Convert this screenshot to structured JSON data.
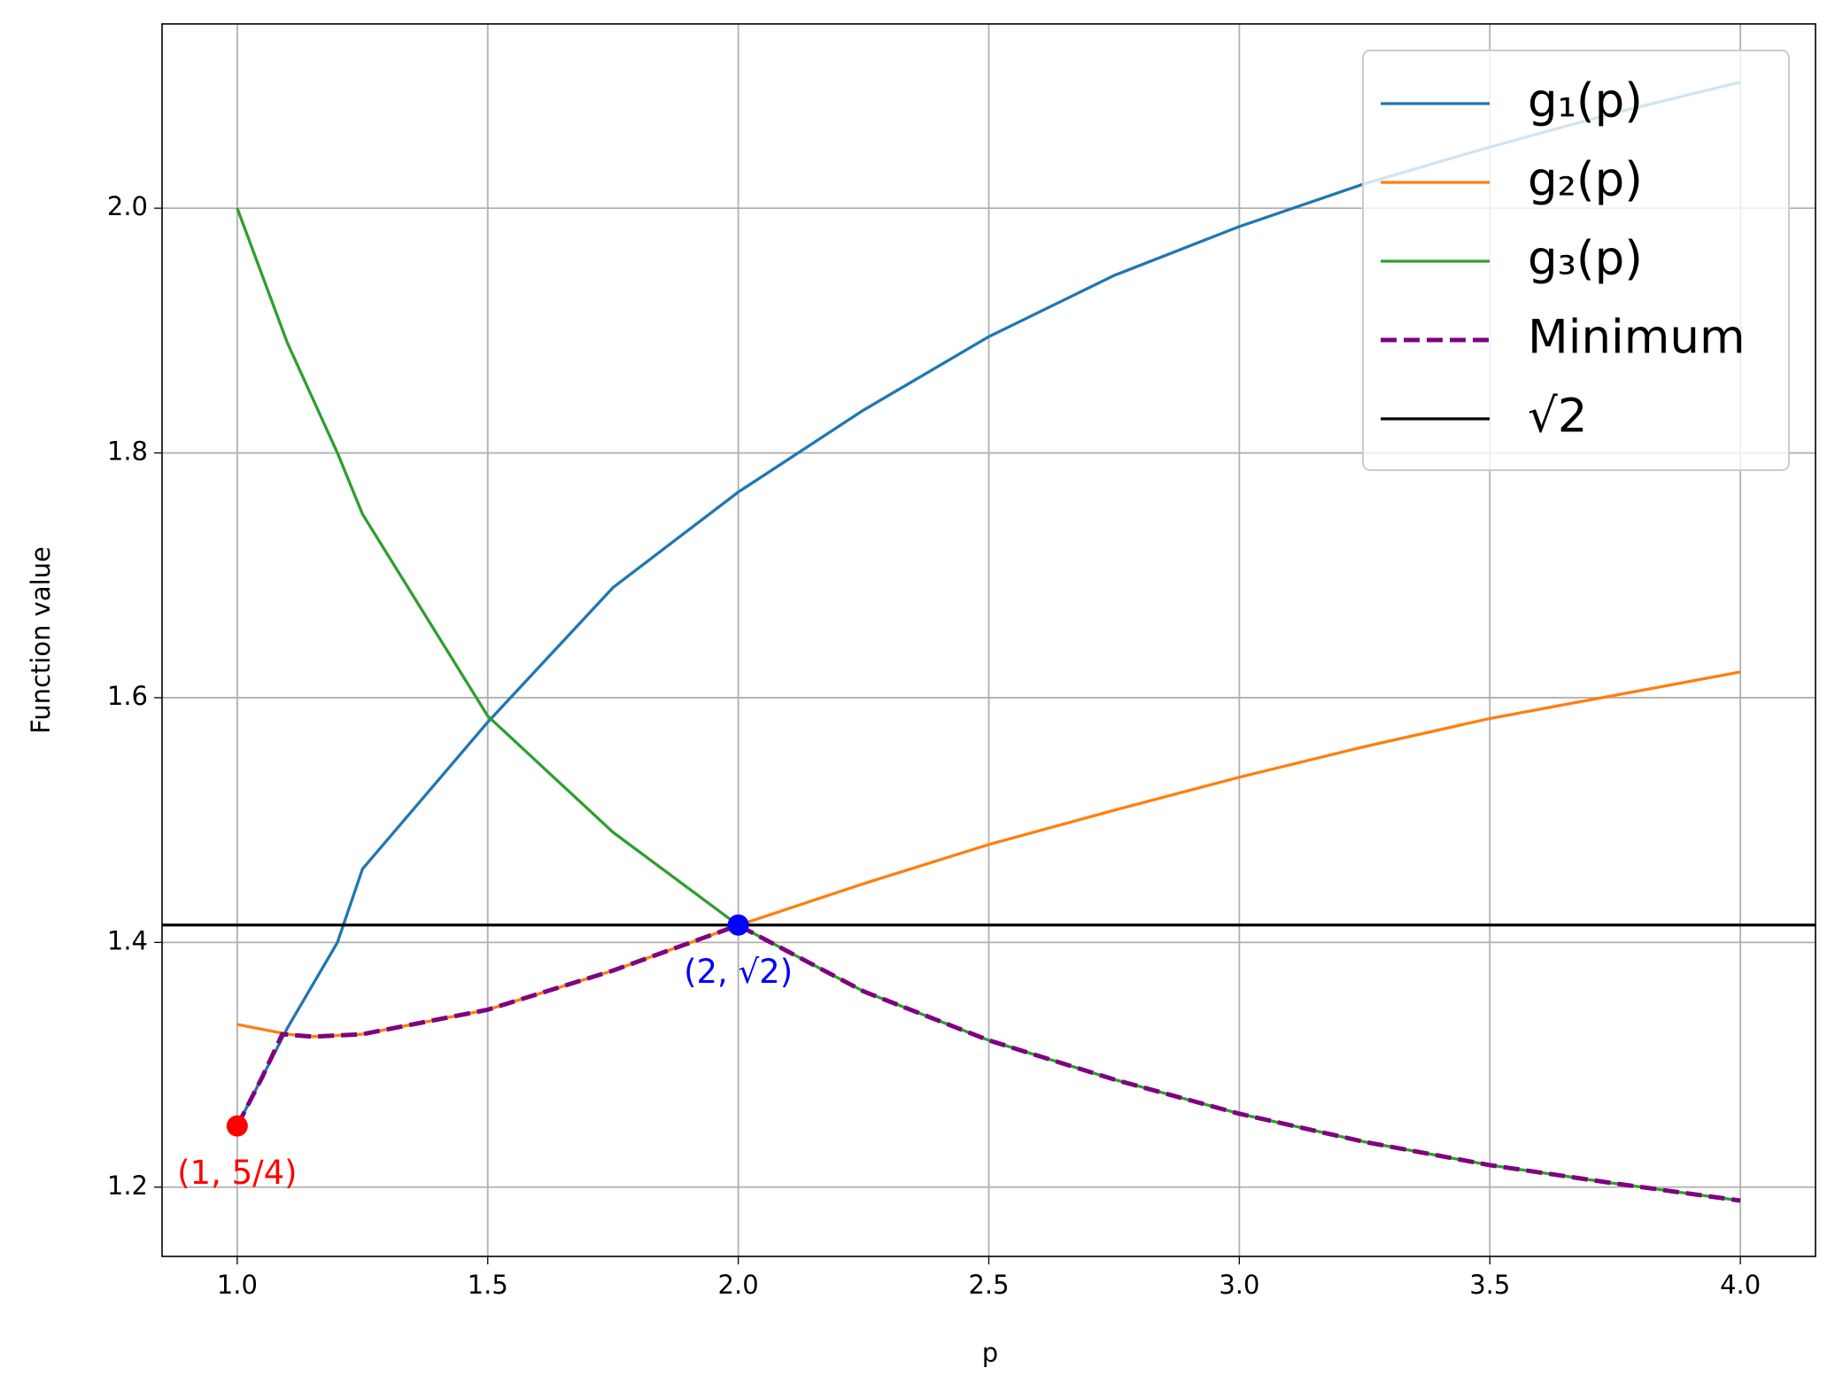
{
  "chart_data": {
    "type": "line",
    "xlabel": "p",
    "ylabel": "Function value",
    "xlim": [
      0.85,
      4.15
    ],
    "ylim": [
      1.1434,
      2.1506
    ],
    "xticks": [
      {
        "value": 1,
        "label": "1.0"
      },
      1.5,
      {
        "value": 2,
        "label": "2.0"
      },
      2.5,
      {
        "value": 3,
        "label": "3.0"
      },
      3.5,
      {
        "value": 4,
        "label": "4.0"
      }
    ],
    "yticks": [
      1.2,
      1.4,
      1.6,
      1.8,
      {
        "value": 2,
        "label": "2.0"
      }
    ],
    "grid": true,
    "legend": "upper right",
    "series": [
      {
        "name": "g₁(p)",
        "color": "#1f77b4",
        "style": "solid",
        "x": [
          1.0,
          1.05,
          1.1,
          1.2,
          1.25,
          1.5,
          1.75,
          2.0,
          2.25,
          2.5,
          2.75,
          3.0,
          3.25,
          3.5,
          3.75,
          4.0
        ],
        "values": [
          1.25,
          1.29,
          1.33,
          1.4,
          1.46,
          1.58,
          1.69,
          1.768,
          1.835,
          1.895,
          1.945,
          1.985,
          2.02,
          2.05,
          2.078,
          2.103
        ]
      },
      {
        "name": "g₂(p)",
        "color": "#ff7f0e",
        "style": "solid",
        "x": [
          1.0,
          1.1,
          1.15,
          1.25,
          1.5,
          1.75,
          2.0,
          2.25,
          2.5,
          2.75,
          3.0,
          3.25,
          3.5,
          3.75,
          4.0
        ],
        "values": [
          1.333,
          1.325,
          1.323,
          1.325,
          1.345,
          1.377,
          1.414,
          1.448,
          1.48,
          1.508,
          1.535,
          1.56,
          1.583,
          1.602,
          1.621
        ]
      },
      {
        "name": "g₃(p)",
        "color": "#2ca02c",
        "style": "solid",
        "x": [
          1.0,
          1.1,
          1.2,
          1.25,
          1.5,
          1.75,
          2.0,
          2.25,
          2.5,
          2.75,
          3.0,
          3.25,
          3.5,
          3.75,
          4.0
        ],
        "values": [
          2.0,
          1.89,
          1.8,
          1.75,
          1.585,
          1.49,
          1.414,
          1.36,
          1.32,
          1.288,
          1.26,
          1.237,
          1.218,
          1.203,
          1.189
        ]
      },
      {
        "name": "Minimum",
        "color": "purple",
        "style": "dashed",
        "x": [
          1.0,
          1.05,
          1.09,
          1.15,
          1.25,
          1.5,
          1.75,
          2.0,
          2.25,
          2.5,
          2.75,
          3.0,
          3.25,
          3.5,
          3.75,
          4.0
        ],
        "values": [
          1.25,
          1.29,
          1.325,
          1.323,
          1.325,
          1.345,
          1.377,
          1.414,
          1.36,
          1.32,
          1.288,
          1.26,
          1.237,
          1.218,
          1.203,
          1.189
        ]
      }
    ],
    "hline": {
      "name": "√2",
      "color": "black",
      "value": 1.4142
    },
    "points": [
      {
        "x": 1,
        "y": 1.25,
        "color": "red",
        "label": "(1, 5/4)"
      },
      {
        "x": 2,
        "y": 1.4142,
        "color": "blue",
        "label": "(2, √2)"
      }
    ]
  }
}
